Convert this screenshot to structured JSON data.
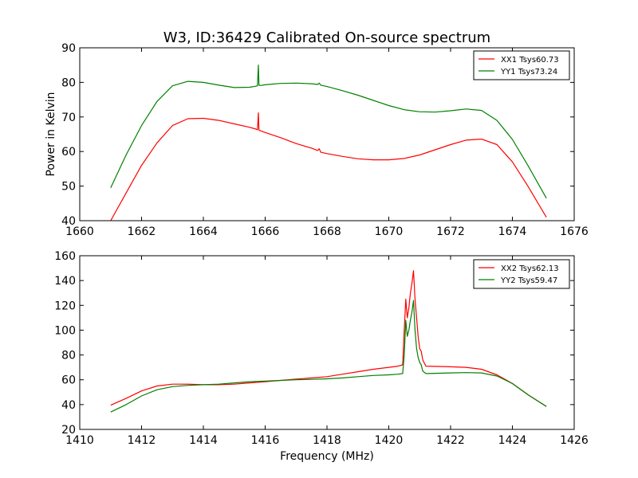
{
  "page": {
    "title": "W3, ID:36429 Calibrated On-source spectrum"
  },
  "chart_data": [
    {
      "type": "line",
      "title": "W3, ID:36429 Calibrated On-source spectrum",
      "xlabel": "",
      "ylabel": "Power in Kelvin",
      "xlim": [
        1660,
        1676
      ],
      "ylim": [
        40,
        90
      ],
      "xticks": [
        1660,
        1662,
        1664,
        1666,
        1668,
        1670,
        1672,
        1674,
        1676
      ],
      "yticks": [
        40,
        50,
        60,
        70,
        80,
        90
      ],
      "grid": false,
      "legend": "top-right",
      "series": [
        {
          "name": "XX1 Tsys60.73",
          "color": "#ff0000",
          "x": [
            1661.0,
            1661.5,
            1662.0,
            1662.5,
            1663.0,
            1663.5,
            1664.0,
            1664.5,
            1665.0,
            1665.5,
            1665.7,
            1665.75,
            1665.78,
            1665.8,
            1665.85,
            1666.0,
            1666.5,
            1667.0,
            1667.5,
            1667.7,
            1667.75,
            1667.8,
            1668.0,
            1668.5,
            1669.0,
            1669.5,
            1670.0,
            1670.5,
            1671.0,
            1671.5,
            1672.0,
            1672.5,
            1673.0,
            1673.5,
            1674.0,
            1674.5,
            1675.1
          ],
          "y": [
            40,
            48,
            56,
            62.5,
            67.5,
            69.5,
            69.6,
            69,
            68,
            67,
            66.5,
            66.3,
            71.2,
            66.2,
            66,
            65.5,
            64,
            62.3,
            61,
            60.3,
            60.8,
            59.8,
            59.4,
            58.6,
            57.9,
            57.6,
            57.6,
            58,
            59,
            60.5,
            62,
            63.3,
            63.6,
            62,
            57,
            50,
            41
          ]
        },
        {
          "name": "YY1 Tsys73.24",
          "color": "#008000",
          "x": [
            1661.0,
            1661.5,
            1662.0,
            1662.5,
            1663.0,
            1663.5,
            1664.0,
            1664.5,
            1665.0,
            1665.5,
            1665.7,
            1665.75,
            1665.78,
            1665.8,
            1665.85,
            1666.0,
            1666.5,
            1667.0,
            1667.5,
            1667.7,
            1667.75,
            1667.8,
            1668.0,
            1668.5,
            1669.0,
            1669.5,
            1670.0,
            1670.5,
            1671.0,
            1671.5,
            1672.0,
            1672.5,
            1673.0,
            1673.5,
            1674.0,
            1674.5,
            1675.1
          ],
          "y": [
            49.5,
            59,
            67.5,
            74.5,
            79,
            80.3,
            80,
            79.2,
            78.5,
            78.6,
            78.9,
            79,
            85,
            79.2,
            79.1,
            79.3,
            79.7,
            79.8,
            79.6,
            79.4,
            79.8,
            79.2,
            78.8,
            77.6,
            76.3,
            74.8,
            73.3,
            72.1,
            71.5,
            71.4,
            71.8,
            72.3,
            71.9,
            69,
            63.5,
            56,
            46.5
          ]
        }
      ]
    },
    {
      "type": "line",
      "title": "",
      "xlabel": "Frequency (MHz)",
      "ylabel": "",
      "xlim": [
        1410,
        1426
      ],
      "ylim": [
        20,
        160
      ],
      "xticks": [
        1410,
        1412,
        1414,
        1416,
        1418,
        1420,
        1422,
        1424,
        1426
      ],
      "yticks": [
        20,
        40,
        60,
        80,
        100,
        120,
        140,
        160
      ],
      "grid": false,
      "legend": "top-right",
      "series": [
        {
          "name": "XX2 Tsys62.13",
          "color": "#ff0000",
          "x": [
            1411.0,
            1411.5,
            1412.0,
            1412.5,
            1413.0,
            1413.5,
            1414.0,
            1414.5,
            1415.0,
            1415.5,
            1416.0,
            1416.5,
            1417.0,
            1417.5,
            1418.0,
            1418.5,
            1419.0,
            1419.5,
            1420.0,
            1420.3,
            1420.45,
            1420.5,
            1420.55,
            1420.6,
            1420.65,
            1420.7,
            1420.75,
            1420.8,
            1420.85,
            1420.9,
            1420.95,
            1421.0,
            1421.05,
            1421.1,
            1421.2,
            1421.5,
            1422.0,
            1422.5,
            1423.0,
            1423.5,
            1424.0,
            1424.5,
            1425.1
          ],
          "y": [
            39.5,
            45,
            51,
            55,
            56.5,
            56.5,
            56,
            56,
            56.5,
            57.5,
            58.5,
            59.5,
            60.5,
            61.5,
            62.5,
            64.5,
            66.5,
            68.5,
            70,
            71,
            72,
            100,
            125,
            110,
            118,
            130,
            138,
            148,
            125,
            110,
            95,
            85,
            83,
            76,
            71,
            70.8,
            70.5,
            70,
            68.5,
            64,
            57,
            48,
            38.5
          ]
        },
        {
          "name": "YY2 Tsys59.47",
          "color": "#008000",
          "x": [
            1411.0,
            1411.5,
            1412.0,
            1412.5,
            1413.0,
            1413.5,
            1414.0,
            1414.5,
            1415.0,
            1415.5,
            1416.0,
            1416.5,
            1417.0,
            1417.5,
            1418.0,
            1418.5,
            1419.0,
            1419.5,
            1420.0,
            1420.3,
            1420.45,
            1420.5,
            1420.55,
            1420.6,
            1420.65,
            1420.7,
            1420.75,
            1420.8,
            1420.85,
            1420.9,
            1420.95,
            1421.0,
            1421.05,
            1421.1,
            1421.2,
            1421.5,
            1422.0,
            1422.5,
            1423.0,
            1423.5,
            1424.0,
            1424.5,
            1425.1
          ],
          "y": [
            34,
            40,
            47,
            52,
            54.5,
            55.5,
            56,
            56.5,
            57.5,
            58.5,
            59,
            59.5,
            60,
            60.3,
            60.8,
            61.5,
            62.5,
            63.5,
            64,
            64.5,
            65,
            80,
            108,
            95,
            100,
            108,
            115,
            124,
            100,
            85,
            78,
            74,
            72,
            67,
            65,
            65.2,
            65.5,
            65.8,
            65.5,
            63,
            57,
            48,
            38.5
          ]
        }
      ]
    }
  ]
}
